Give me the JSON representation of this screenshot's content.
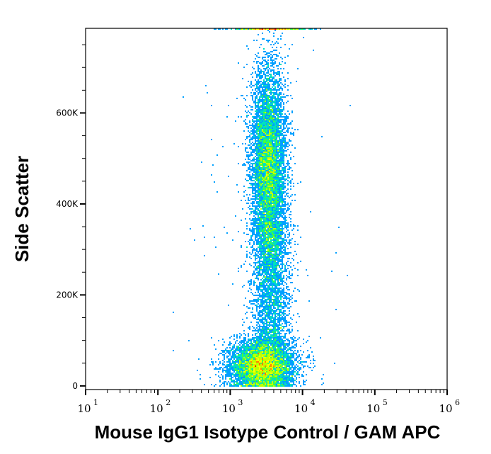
{
  "chart_data": {
    "type": "scatter",
    "subtype": "density-dot-plot",
    "title": "",
    "xlabel": "Mouse IgG1 Isotype Control / GAM APC",
    "ylabel": "Side Scatter",
    "x_scale": "log",
    "xlim": [
      10,
      1000000
    ],
    "ylim": [
      -8000,
      786000
    ],
    "x_ticks": [
      {
        "base": "10",
        "exp": "1",
        "value": 10
      },
      {
        "base": "10",
        "exp": "2",
        "value": 100
      },
      {
        "base": "10",
        "exp": "3",
        "value": 1000
      },
      {
        "base": "10",
        "exp": "4",
        "value": 10000
      },
      {
        "base": "10",
        "exp": "5",
        "value": 100000
      },
      {
        "base": "10",
        "exp": "6",
        "value": 1000000
      }
    ],
    "y_ticks": [
      {
        "label": "0",
        "value": 0
      },
      {
        "label": "200K",
        "value": 200000
      },
      {
        "label": "400K",
        "value": 400000
      },
      {
        "label": "600K",
        "value": 600000
      }
    ],
    "y_minor_step": 50000,
    "grid": false,
    "populations": [
      {
        "x_center": 2800,
        "x_log_sd": 0.22,
        "y_center": 45000,
        "y_sd": 28000,
        "events": 7000
      },
      {
        "x_center": 3400,
        "x_log_sd": 0.12,
        "y_center": 480000,
        "y_sd": 110000,
        "events": 8000
      },
      {
        "x_center": 3700,
        "x_log_sd": 0.13,
        "y_min": 90000,
        "y_max": 360000,
        "events": 2600
      },
      {
        "x_center": 3500,
        "x_log_sd": 0.25,
        "y_center": 786000,
        "y_sd": 0,
        "events": 500
      },
      {
        "x_center": 3000,
        "x_log_sd": 0.6,
        "y_center": 300000,
        "y_sd": 220000,
        "events": 150
      }
    ],
    "density_colors": [
      "#0000ff",
      "#00a0ff",
      "#00e0c0",
      "#40ff40",
      "#c0ff00",
      "#ffff00",
      "#ff8000",
      "#ff0000"
    ]
  }
}
